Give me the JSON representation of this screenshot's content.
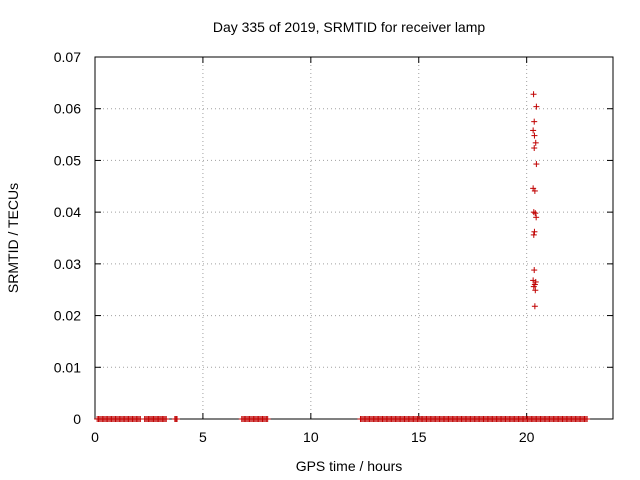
{
  "chart_data": {
    "type": "scatter",
    "title": "Day 335 of 2019, SRMTID for receiver lamp",
    "xlabel": "GPS time / hours",
    "ylabel": "SRMTID / TECUs",
    "xlim": [
      0,
      24
    ],
    "ylim": [
      0,
      0.07
    ],
    "grid": true,
    "marker": "+",
    "series_color": "#c00000",
    "xticks": [
      0,
      5,
      10,
      15,
      20
    ],
    "xtick_labels": [
      "0",
      "5",
      "10",
      "15",
      "20"
    ],
    "yticks": [
      0,
      0.01,
      0.02,
      0.03,
      0.04,
      0.05,
      0.06,
      0.07
    ],
    "ytick_labels": [
      "0",
      "0.01",
      "0.02",
      "0.03",
      "0.04",
      "0.05",
      "0.06",
      "0.07"
    ],
    "zero_segments_hours": [
      [
        0.1,
        2.1
      ],
      [
        2.3,
        3.3
      ],
      [
        3.7,
        3.8
      ],
      [
        6.8,
        8.0
      ],
      [
        12.3,
        22.8
      ]
    ],
    "points": [
      {
        "x": 20.32,
        "y": 0.0628
      },
      {
        "x": 20.45,
        "y": 0.0604
      },
      {
        "x": 20.35,
        "y": 0.0575
      },
      {
        "x": 20.3,
        "y": 0.0558
      },
      {
        "x": 20.36,
        "y": 0.0548
      },
      {
        "x": 20.42,
        "y": 0.0534
      },
      {
        "x": 20.35,
        "y": 0.0524
      },
      {
        "x": 20.45,
        "y": 0.0493
      },
      {
        "x": 20.3,
        "y": 0.0446
      },
      {
        "x": 20.38,
        "y": 0.0441
      },
      {
        "x": 20.33,
        "y": 0.04
      },
      {
        "x": 20.4,
        "y": 0.0398
      },
      {
        "x": 20.44,
        "y": 0.039
      },
      {
        "x": 20.36,
        "y": 0.0362
      },
      {
        "x": 20.33,
        "y": 0.0356
      },
      {
        "x": 20.35,
        "y": 0.0288
      },
      {
        "x": 20.3,
        "y": 0.0268
      },
      {
        "x": 20.42,
        "y": 0.0265
      },
      {
        "x": 20.38,
        "y": 0.026
      },
      {
        "x": 20.33,
        "y": 0.0256
      },
      {
        "x": 20.4,
        "y": 0.0249
      },
      {
        "x": 20.38,
        "y": 0.0218
      }
    ]
  }
}
